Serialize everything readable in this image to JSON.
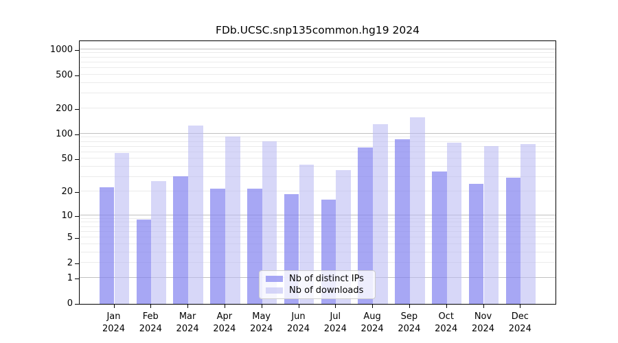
{
  "chart_data": {
    "type": "bar",
    "title": "FDb.UCSC.snp135common.hg19 2024",
    "yscale": "log1p",
    "grid": true,
    "yticks": [
      0,
      1,
      2,
      5,
      10,
      20,
      50,
      100,
      200,
      500,
      1000
    ],
    "ylim": [
      0,
      1300
    ],
    "legend_position": "inside-bottom-center",
    "categories": [
      {
        "month": "Jan",
        "year": "2024"
      },
      {
        "month": "Feb",
        "year": "2024"
      },
      {
        "month": "Mar",
        "year": "2024"
      },
      {
        "month": "Apr",
        "year": "2024"
      },
      {
        "month": "May",
        "year": "2024"
      },
      {
        "month": "Jun",
        "year": "2024"
      },
      {
        "month": "Jul",
        "year": "2024"
      },
      {
        "month": "Aug",
        "year": "2024"
      },
      {
        "month": "Sep",
        "year": "2024"
      },
      {
        "month": "Oct",
        "year": "2024"
      },
      {
        "month": "Nov",
        "year": "2024"
      },
      {
        "month": "Dec",
        "year": "2024"
      }
    ],
    "series": [
      {
        "name": "Nb of distinct IPs",
        "color": "rgba(130,130,240,0.70)",
        "color_hex": "#a7a7f6",
        "values": [
          23,
          9,
          31,
          22,
          22,
          19,
          16,
          69,
          87,
          36,
          25,
          30
        ]
      },
      {
        "name": "Nb of downloads",
        "color": "rgba(185,185,243,0.57)",
        "color_hex": "#d8d8f8",
        "values": [
          60,
          27,
          127,
          94,
          82,
          43,
          37,
          131,
          159,
          80,
          72,
          76
        ]
      }
    ]
  }
}
